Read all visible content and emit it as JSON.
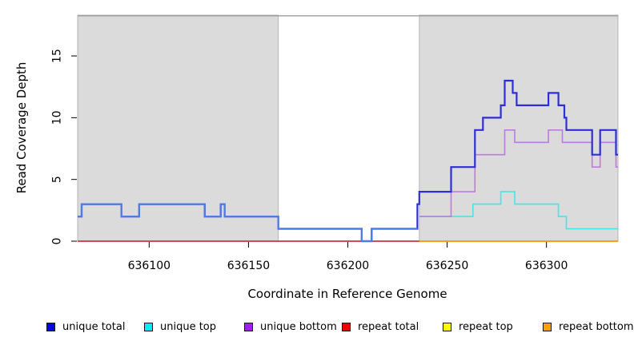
{
  "chart_data": {
    "type": "line",
    "subtype": "step",
    "title": "",
    "xlabel": "Coordinate in Reference Genome",
    "ylabel": "Read Coverage Depth",
    "xlim": [
      636064,
      636336
    ],
    "ylim": [
      0,
      18.3
    ],
    "x_ticks": [
      636100,
      636150,
      636200,
      636250,
      636300
    ],
    "y_ticks": [
      0,
      5,
      10,
      15
    ],
    "grid": false,
    "legend_position": "bottom",
    "colors": {
      "background": "#FFFFFF",
      "shaded_region": "#DBDBDB",
      "shaded_border": "#B5B5B5",
      "top_border": "#9C9C9C",
      "axis": "#000000",
      "text": "#000000"
    },
    "shaded_regions": [
      {
        "x0": 636064,
        "x1": 636165
      },
      {
        "x0": 636236,
        "x1": 636336
      }
    ],
    "blue_left_blend": {
      "end_x": 636235,
      "color": "#4C7CE8"
    },
    "draw_order": [
      4,
      3,
      5,
      1,
      2,
      0
    ],
    "series": [
      {
        "name": "unique total",
        "color": "#0000EE",
        "line_color": "#2E2ED8",
        "points": [
          [
            636064,
            2
          ],
          [
            636066,
            3
          ],
          [
            636086,
            2
          ],
          [
            636095,
            3
          ],
          [
            636128,
            2
          ],
          [
            636136,
            3
          ],
          [
            636138,
            2
          ],
          [
            636165,
            1
          ],
          [
            636207,
            0
          ],
          [
            636212,
            1
          ],
          [
            636235,
            3
          ],
          [
            636236,
            4
          ],
          [
            636252,
            6
          ],
          [
            636264,
            9
          ],
          [
            636268,
            10
          ],
          [
            636277,
            11
          ],
          [
            636279,
            13
          ],
          [
            636283,
            12
          ],
          [
            636285,
            11
          ],
          [
            636301,
            12
          ],
          [
            636306,
            11
          ],
          [
            636309,
            10
          ],
          [
            636310,
            9
          ],
          [
            636323,
            7
          ],
          [
            636327,
            9
          ],
          [
            636335,
            7
          ],
          [
            636336,
            7
          ]
        ]
      },
      {
        "name": "unique top",
        "color": "#00EEEE",
        "line_color": "#49E3E6",
        "points": [
          [
            636236,
            2
          ],
          [
            636263,
            3
          ],
          [
            636277,
            4
          ],
          [
            636284,
            3
          ],
          [
            636306,
            2
          ],
          [
            636310,
            1
          ],
          [
            636336,
            1
          ]
        ]
      },
      {
        "name": "unique bottom",
        "color": "#A020F0",
        "line_color": "#BC7AE2",
        "points": [
          [
            636236,
            2
          ],
          [
            636252,
            4
          ],
          [
            636264,
            7
          ],
          [
            636279,
            9
          ],
          [
            636284,
            8
          ],
          [
            636301,
            9
          ],
          [
            636308,
            8
          ],
          [
            636323,
            6
          ],
          [
            636327,
            8
          ],
          [
            636335,
            6
          ],
          [
            636336,
            6
          ]
        ]
      },
      {
        "name": "repeat total",
        "color": "#EE0000",
        "line_color": "#CC3355",
        "points": [
          [
            636064,
            0
          ],
          [
            636236,
            0
          ]
        ]
      },
      {
        "name": "repeat top",
        "color": "#FFFF00",
        "line_color": "#FFE800",
        "points": [
          [
            636064,
            0
          ],
          [
            636336,
            0
          ]
        ]
      },
      {
        "name": "repeat bottom",
        "color": "#FFA000",
        "line_color": "#FF9E1B",
        "points": [
          [
            636236,
            0
          ],
          [
            636336,
            0
          ]
        ]
      }
    ]
  }
}
